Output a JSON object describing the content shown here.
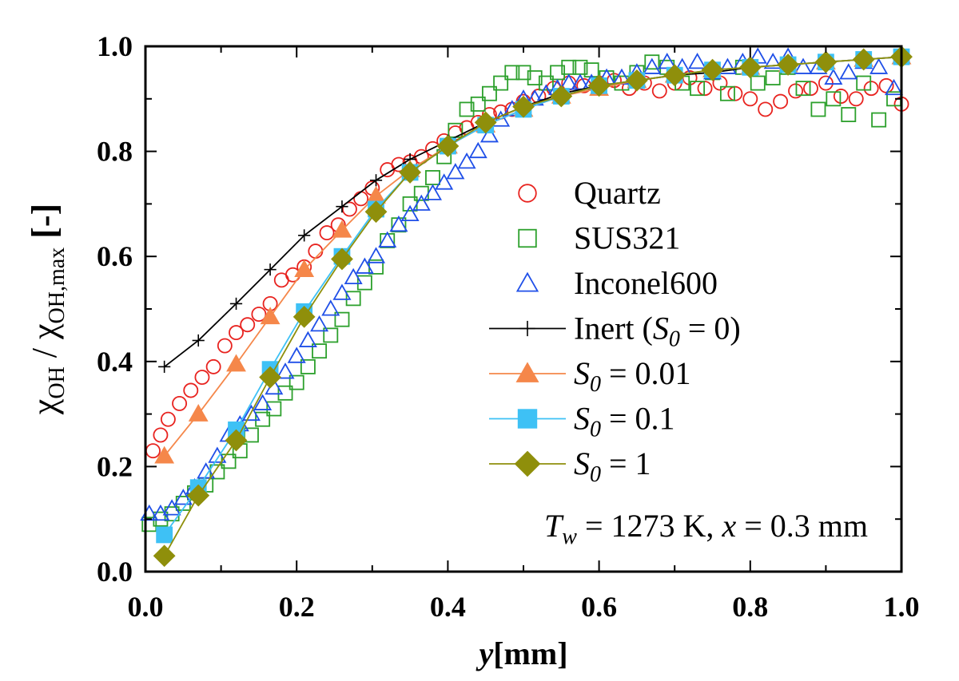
{
  "chart_data": {
    "type": "scatter",
    "xlabel_main": "y",
    "xlabel_unit": "[mm]",
    "ylabel_chi": "χ",
    "ylabel_sub1": "OH",
    "ylabel_sep": " / ",
    "ylabel_sub2": "OH,max",
    "ylabel_unit": " [-]",
    "xlim": [
      0,
      1
    ],
    "ylim": [
      0,
      1
    ],
    "x_ticks": [
      "0.0",
      "0.2",
      "0.4",
      "0.6",
      "0.8",
      "1.0"
    ],
    "y_ticks": [
      "0.0",
      "0.2",
      "0.4",
      "0.6",
      "0.8",
      "1.0"
    ],
    "grid": false,
    "legend_position": "right",
    "annotation": {
      "T": "T",
      "w": "w",
      "rest1": " = 1273 K, ",
      "x": "x",
      "rest2": " = 0.3 mm"
    },
    "series": [
      {
        "name": "Quartz",
        "name_kind": "plain",
        "marker": "circle",
        "filled": false,
        "line": false,
        "color": "#e8231f",
        "x": [
          0.01,
          0.02,
          0.03,
          0.045,
          0.06,
          0.075,
          0.09,
          0.105,
          0.12,
          0.135,
          0.15,
          0.165,
          0.18,
          0.195,
          0.21,
          0.225,
          0.24,
          0.255,
          0.27,
          0.285,
          0.3,
          0.32,
          0.335,
          0.35,
          0.365,
          0.38,
          0.395,
          0.41,
          0.425,
          0.44,
          0.455,
          0.47,
          0.485,
          0.5,
          0.52,
          0.54,
          0.56,
          0.58,
          0.6,
          0.62,
          0.64,
          0.66,
          0.68,
          0.7,
          0.72,
          0.74,
          0.76,
          0.78,
          0.8,
          0.82,
          0.84,
          0.86,
          0.88,
          0.9,
          0.92,
          0.94,
          0.96,
          0.98,
          1.0
        ],
        "y": [
          0.23,
          0.26,
          0.29,
          0.32,
          0.345,
          0.37,
          0.39,
          0.43,
          0.455,
          0.47,
          0.49,
          0.51,
          0.555,
          0.565,
          0.58,
          0.61,
          0.645,
          0.66,
          0.69,
          0.71,
          0.73,
          0.765,
          0.775,
          0.78,
          0.79,
          0.805,
          0.82,
          0.835,
          0.845,
          0.855,
          0.87,
          0.875,
          0.88,
          0.895,
          0.905,
          0.92,
          0.93,
          0.925,
          0.93,
          0.935,
          0.92,
          0.93,
          0.915,
          0.93,
          0.94,
          0.92,
          0.93,
          0.91,
          0.9,
          0.88,
          0.895,
          0.915,
          0.92,
          0.93,
          0.905,
          0.9,
          0.92,
          0.925,
          0.89
        ]
      },
      {
        "name": "SUS321",
        "name_kind": "plain",
        "marker": "square",
        "filled": false,
        "line": false,
        "color": "#2ca02c",
        "x": [
          0.005,
          0.02,
          0.035,
          0.05,
          0.065,
          0.08,
          0.095,
          0.11,
          0.125,
          0.14,
          0.155,
          0.17,
          0.185,
          0.2,
          0.215,
          0.23,
          0.245,
          0.26,
          0.275,
          0.29,
          0.305,
          0.32,
          0.335,
          0.35,
          0.365,
          0.38,
          0.395,
          0.41,
          0.425,
          0.44,
          0.455,
          0.47,
          0.485,
          0.5,
          0.515,
          0.53,
          0.545,
          0.56,
          0.575,
          0.59,
          0.61,
          0.63,
          0.65,
          0.67,
          0.69,
          0.71,
          0.73,
          0.75,
          0.77,
          0.79,
          0.81,
          0.83,
          0.85,
          0.87,
          0.89,
          0.91,
          0.93,
          0.95,
          0.97,
          0.99
        ],
        "y": [
          0.09,
          0.1,
          0.11,
          0.13,
          0.15,
          0.165,
          0.19,
          0.21,
          0.23,
          0.26,
          0.29,
          0.31,
          0.34,
          0.36,
          0.39,
          0.42,
          0.45,
          0.48,
          0.52,
          0.55,
          0.58,
          0.63,
          0.66,
          0.7,
          0.72,
          0.75,
          0.79,
          0.84,
          0.88,
          0.89,
          0.91,
          0.93,
          0.95,
          0.95,
          0.94,
          0.93,
          0.95,
          0.96,
          0.96,
          0.955,
          0.94,
          0.93,
          0.95,
          0.97,
          0.96,
          0.93,
          0.92,
          0.95,
          0.91,
          0.96,
          0.93,
          0.94,
          0.96,
          0.92,
          0.88,
          0.9,
          0.87,
          0.93,
          0.86,
          0.9
        ]
      },
      {
        "name": "Inconel600",
        "name_kind": "plain",
        "marker": "triangle",
        "filled": false,
        "line": false,
        "color": "#1f4fe8",
        "x": [
          0.005,
          0.02,
          0.035,
          0.05,
          0.065,
          0.08,
          0.095,
          0.11,
          0.125,
          0.14,
          0.155,
          0.17,
          0.185,
          0.2,
          0.215,
          0.23,
          0.245,
          0.26,
          0.275,
          0.29,
          0.305,
          0.32,
          0.335,
          0.35,
          0.365,
          0.38,
          0.395,
          0.41,
          0.425,
          0.44,
          0.455,
          0.47,
          0.485,
          0.5,
          0.515,
          0.53,
          0.545,
          0.56,
          0.575,
          0.59,
          0.61,
          0.63,
          0.65,
          0.67,
          0.69,
          0.71,
          0.73,
          0.75,
          0.77,
          0.79,
          0.81,
          0.83,
          0.85,
          0.87,
          0.89,
          0.91,
          0.93,
          0.95,
          0.97,
          0.99
        ],
        "y": [
          0.11,
          0.11,
          0.12,
          0.14,
          0.16,
          0.19,
          0.22,
          0.26,
          0.28,
          0.3,
          0.32,
          0.35,
          0.38,
          0.41,
          0.44,
          0.47,
          0.5,
          0.53,
          0.56,
          0.58,
          0.6,
          0.63,
          0.66,
          0.68,
          0.7,
          0.72,
          0.74,
          0.76,
          0.78,
          0.8,
          0.83,
          0.86,
          0.88,
          0.9,
          0.9,
          0.91,
          0.92,
          0.93,
          0.93,
          0.93,
          0.94,
          0.94,
          0.95,
          0.96,
          0.97,
          0.96,
          0.97,
          0.95,
          0.96,
          0.97,
          0.98,
          0.97,
          0.98,
          0.96,
          0.96,
          0.94,
          0.95,
          0.97,
          0.96,
          0.92
        ]
      },
      {
        "name": "Inert (",
        "name_italic": "S",
        "name_sub": "0",
        "name_tail": " = 0)",
        "name_kind": "sym",
        "marker": "plus",
        "filled": false,
        "line": true,
        "color": "#000000",
        "x": [
          0.025,
          0.07,
          0.12,
          0.165,
          0.21,
          0.26,
          0.305,
          0.35,
          0.4,
          0.45,
          0.5,
          0.55,
          0.6,
          0.65,
          0.7,
          0.75,
          0.8,
          0.85,
          0.9,
          0.95,
          1.0
        ],
        "y": [
          0.39,
          0.44,
          0.51,
          0.575,
          0.64,
          0.695,
          0.745,
          0.785,
          0.82,
          0.855,
          0.885,
          0.91,
          0.925,
          0.935,
          0.945,
          0.95,
          0.96,
          0.965,
          0.97,
          0.975,
          0.98
        ]
      },
      {
        "name": "",
        "name_italic": "S",
        "name_sub": "0",
        "name_tail": " = 0.01",
        "name_kind": "sym",
        "marker": "triangle",
        "filled": true,
        "line": true,
        "color": "#f5874a",
        "x": [
          0.025,
          0.07,
          0.12,
          0.165,
          0.21,
          0.26,
          0.305,
          0.35,
          0.4,
          0.45,
          0.5,
          0.55,
          0.6,
          0.65,
          0.7,
          0.75,
          0.8,
          0.85,
          0.9,
          0.95,
          1.0
        ],
        "y": [
          0.22,
          0.3,
          0.395,
          0.485,
          0.575,
          0.65,
          0.715,
          0.765,
          0.81,
          0.85,
          0.88,
          0.905,
          0.92,
          0.935,
          0.945,
          0.955,
          0.96,
          0.965,
          0.97,
          0.975,
          0.98
        ]
      },
      {
        "name": "",
        "name_italic": "S",
        "name_sub": "0",
        "name_tail": " = 0.1",
        "name_kind": "sym",
        "marker": "square",
        "filled": true,
        "line": true,
        "color": "#3ec1f5",
        "x": [
          0.025,
          0.07,
          0.12,
          0.165,
          0.21,
          0.26,
          0.305,
          0.35,
          0.4,
          0.45,
          0.5,
          0.55,
          0.6,
          0.65,
          0.7,
          0.75,
          0.8,
          0.85,
          0.9,
          0.95,
          1.0
        ],
        "y": [
          0.07,
          0.16,
          0.27,
          0.385,
          0.495,
          0.6,
          0.69,
          0.76,
          0.81,
          0.85,
          0.88,
          0.905,
          0.925,
          0.935,
          0.945,
          0.955,
          0.96,
          0.965,
          0.97,
          0.975,
          0.98
        ]
      },
      {
        "name": "",
        "name_italic": "S",
        "name_sub": "0",
        "name_tail": " = 1",
        "name_kind": "sym",
        "marker": "diamond",
        "filled": true,
        "line": true,
        "color": "#8f8f0b",
        "x": [
          0.025,
          0.07,
          0.12,
          0.165,
          0.21,
          0.26,
          0.305,
          0.35,
          0.4,
          0.45,
          0.5,
          0.55,
          0.6,
          0.65,
          0.7,
          0.75,
          0.8,
          0.85,
          0.9,
          0.95,
          1.0
        ],
        "y": [
          0.03,
          0.145,
          0.25,
          0.37,
          0.485,
          0.595,
          0.685,
          0.76,
          0.81,
          0.855,
          0.885,
          0.905,
          0.925,
          0.935,
          0.945,
          0.955,
          0.96,
          0.965,
          0.97,
          0.975,
          0.98
        ]
      }
    ]
  }
}
